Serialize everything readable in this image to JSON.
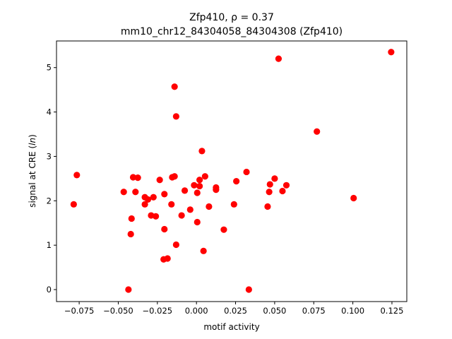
{
  "chart_data": {
    "type": "scatter",
    "title_line1": "Zfp410, ρ = 0.37",
    "title_line2": "mm10_chr12_84304058_84304308 (Zfp410)",
    "xlabel": "motif activity",
    "ylabel": "signal at CRE (ln)",
    "xlim": [
      -0.0895,
      0.1345
    ],
    "ylim": [
      -0.27,
      5.6
    ],
    "xticks": [
      -0.075,
      -0.05,
      -0.025,
      0.0,
      0.025,
      0.05,
      0.075,
      0.1,
      0.125
    ],
    "xtick_labels": [
      "−0.075",
      "−0.050",
      "−0.025",
      "0.000",
      "0.025",
      "0.050",
      "0.075",
      "0.100",
      "0.125"
    ],
    "yticks": [
      0,
      1,
      2,
      3,
      4,
      5
    ],
    "ytick_labels": [
      "0",
      "1",
      "2",
      "3",
      "4",
      "5"
    ],
    "grid": false,
    "marker_color": "#ff0000",
    "points": [
      {
        "x": -0.0785,
        "y": 1.92
      },
      {
        "x": -0.0765,
        "y": 2.58
      },
      {
        "x": -0.0465,
        "y": 2.2
      },
      {
        "x": -0.0435,
        "y": 0.0
      },
      {
        "x": -0.042,
        "y": 1.25
      },
      {
        "x": -0.0415,
        "y": 1.6
      },
      {
        "x": -0.0405,
        "y": 2.53
      },
      {
        "x": -0.039,
        "y": 2.2
      },
      {
        "x": -0.0375,
        "y": 2.52
      },
      {
        "x": -0.033,
        "y": 2.08
      },
      {
        "x": -0.033,
        "y": 1.92
      },
      {
        "x": -0.031,
        "y": 2.03
      },
      {
        "x": -0.029,
        "y": 1.67
      },
      {
        "x": -0.0275,
        "y": 2.08
      },
      {
        "x": -0.026,
        "y": 1.65
      },
      {
        "x": -0.0235,
        "y": 2.47
      },
      {
        "x": -0.021,
        "y": 0.68
      },
      {
        "x": -0.0205,
        "y": 2.15
      },
      {
        "x": -0.0205,
        "y": 1.36
      },
      {
        "x": -0.0185,
        "y": 0.7
      },
      {
        "x": -0.016,
        "y": 1.92
      },
      {
        "x": -0.0155,
        "y": 2.53
      },
      {
        "x": -0.014,
        "y": 4.57
      },
      {
        "x": -0.014,
        "y": 2.55
      },
      {
        "x": -0.013,
        "y": 3.9
      },
      {
        "x": -0.013,
        "y": 1.01
      },
      {
        "x": -0.0095,
        "y": 1.67
      },
      {
        "x": -0.0075,
        "y": 2.23
      },
      {
        "x": -0.004,
        "y": 1.8
      },
      {
        "x": -0.0015,
        "y": 2.35
      },
      {
        "x": 0.0005,
        "y": 2.18
      },
      {
        "x": 0.0005,
        "y": 1.52
      },
      {
        "x": 0.002,
        "y": 2.47
      },
      {
        "x": 0.002,
        "y": 2.33
      },
      {
        "x": 0.0035,
        "y": 3.12
      },
      {
        "x": 0.0045,
        "y": 0.87
      },
      {
        "x": 0.0055,
        "y": 2.55
      },
      {
        "x": 0.008,
        "y": 1.87
      },
      {
        "x": 0.0125,
        "y": 2.3
      },
      {
        "x": 0.0125,
        "y": 2.25
      },
      {
        "x": 0.0175,
        "y": 1.35
      },
      {
        "x": 0.024,
        "y": 1.92
      },
      {
        "x": 0.0255,
        "y": 2.44
      },
      {
        "x": 0.032,
        "y": 2.65
      },
      {
        "x": 0.0335,
        "y": 0.0
      },
      {
        "x": 0.0455,
        "y": 1.87
      },
      {
        "x": 0.0465,
        "y": 2.2
      },
      {
        "x": 0.047,
        "y": 2.37
      },
      {
        "x": 0.05,
        "y": 2.5
      },
      {
        "x": 0.0525,
        "y": 5.2
      },
      {
        "x": 0.055,
        "y": 2.22
      },
      {
        "x": 0.0575,
        "y": 2.35
      },
      {
        "x": 0.077,
        "y": 3.56
      },
      {
        "x": 0.1005,
        "y": 2.06
      },
      {
        "x": 0.1245,
        "y": 5.35
      }
    ]
  }
}
